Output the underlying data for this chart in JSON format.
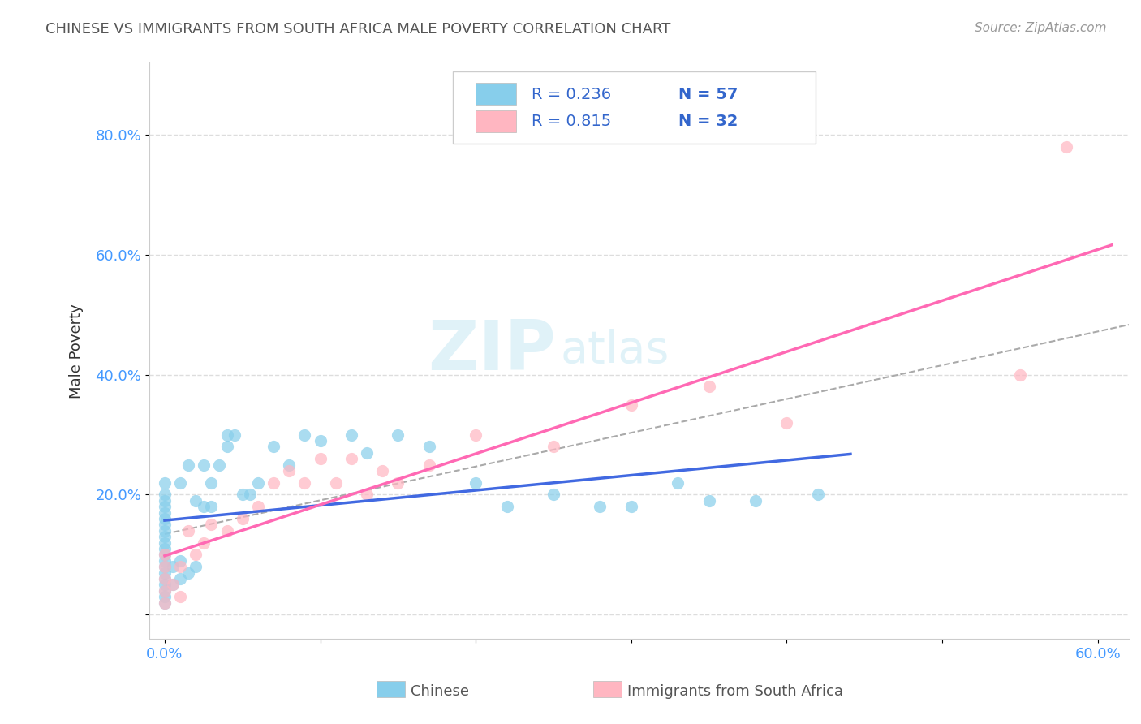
{
  "title": "CHINESE VS IMMIGRANTS FROM SOUTH AFRICA MALE POVERTY CORRELATION CHART",
  "source": "Source: ZipAtlas.com",
  "ylabel": "Male Poverty",
  "watermark_zip": "ZIP",
  "watermark_atlas": "atlas",
  "legend_r1": "R = 0.236",
  "legend_n1": "N = 57",
  "legend_r2": "R = 0.815",
  "legend_n2": "N = 32",
  "label1": "Chinese",
  "label2": "Immigrants from South Africa",
  "xlim": [
    -0.01,
    0.62
  ],
  "ylim": [
    -0.04,
    0.92
  ],
  "xticks": [
    0.0,
    0.1,
    0.2,
    0.3,
    0.4,
    0.5,
    0.6
  ],
  "xticklabels": [
    "0.0%",
    "",
    "",
    "",
    "",
    "",
    "60.0%"
  ],
  "ytick_positions": [
    0.0,
    0.2,
    0.4,
    0.6,
    0.8
  ],
  "yticklabels": [
    "",
    "20.0%",
    "40.0%",
    "60.0%",
    "80.0%"
  ],
  "color1": "#87CEEB",
  "color2": "#FFB6C1",
  "line_color1": "#4169E1",
  "line_color2": "#FF69B4",
  "bg_color": "#FFFFFF",
  "grid_color": "#DDDDDD",
  "title_color": "#555555",
  "tick_color": "#4499FF",
  "chinese_x": [
    0.0,
    0.0,
    0.0,
    0.0,
    0.0,
    0.0,
    0.0,
    0.0,
    0.0,
    0.0,
    0.0,
    0.0,
    0.0,
    0.0,
    0.0,
    0.0,
    0.0,
    0.0,
    0.0,
    0.0,
    0.005,
    0.005,
    0.01,
    0.01,
    0.01,
    0.015,
    0.015,
    0.02,
    0.02,
    0.025,
    0.025,
    0.03,
    0.03,
    0.035,
    0.04,
    0.04,
    0.045,
    0.05,
    0.055,
    0.06,
    0.07,
    0.08,
    0.09,
    0.1,
    0.12,
    0.13,
    0.15,
    0.17,
    0.2,
    0.22,
    0.25,
    0.28,
    0.3,
    0.33,
    0.35,
    0.38,
    0.42
  ],
  "chinese_y": [
    0.02,
    0.03,
    0.04,
    0.05,
    0.06,
    0.07,
    0.08,
    0.09,
    0.1,
    0.11,
    0.12,
    0.13,
    0.14,
    0.15,
    0.16,
    0.17,
    0.18,
    0.19,
    0.2,
    0.22,
    0.05,
    0.08,
    0.06,
    0.09,
    0.22,
    0.07,
    0.25,
    0.08,
    0.19,
    0.18,
    0.25,
    0.18,
    0.22,
    0.25,
    0.28,
    0.3,
    0.3,
    0.2,
    0.2,
    0.22,
    0.28,
    0.25,
    0.3,
    0.29,
    0.3,
    0.27,
    0.3,
    0.28,
    0.22,
    0.18,
    0.2,
    0.18,
    0.18,
    0.22,
    0.19,
    0.19,
    0.2
  ],
  "sa_x": [
    0.0,
    0.0,
    0.0,
    0.0,
    0.0,
    0.005,
    0.01,
    0.01,
    0.015,
    0.02,
    0.025,
    0.03,
    0.04,
    0.05,
    0.06,
    0.07,
    0.08,
    0.09,
    0.1,
    0.11,
    0.12,
    0.13,
    0.14,
    0.15,
    0.17,
    0.2,
    0.25,
    0.3,
    0.35,
    0.4,
    0.55,
    0.58
  ],
  "sa_y": [
    0.02,
    0.04,
    0.06,
    0.08,
    0.1,
    0.05,
    0.03,
    0.08,
    0.14,
    0.1,
    0.12,
    0.15,
    0.14,
    0.16,
    0.18,
    0.22,
    0.24,
    0.22,
    0.26,
    0.22,
    0.26,
    0.2,
    0.24,
    0.22,
    0.25,
    0.3,
    0.28,
    0.35,
    0.38,
    0.32,
    0.4,
    0.78
  ]
}
